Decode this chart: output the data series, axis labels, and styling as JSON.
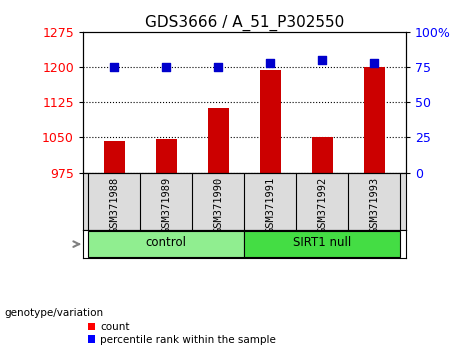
{
  "title": "GDS3666 / A_51_P302550",
  "samples": [
    "GSM371988",
    "GSM371989",
    "GSM371990",
    "GSM371991",
    "GSM371992",
    "GSM371993"
  ],
  "counts": [
    1042,
    1046,
    1113,
    1193,
    1052,
    1200
  ],
  "percentile_ranks": [
    75,
    75,
    75,
    78,
    80,
    78
  ],
  "ylim_left": [
    975,
    1275
  ],
  "yticks_left": [
    975,
    1050,
    1125,
    1200,
    1275
  ],
  "ylim_right": [
    0,
    100
  ],
  "yticks_right": [
    0,
    25,
    50,
    75,
    100
  ],
  "groups": [
    {
      "label": "control",
      "indices": [
        0,
        1,
        2
      ],
      "color": "#90EE90"
    },
    {
      "label": "SIRT1 null",
      "indices": [
        3,
        4,
        5
      ],
      "color": "#44DD44"
    }
  ],
  "bar_color": "#CC0000",
  "dot_color": "#0000CC",
  "bar_width": 0.4,
  "grid_color": "black",
  "background_color": "#DCDCDC",
  "title_fontsize": 11,
  "tick_fontsize": 9,
  "legend_label_count": "count",
  "legend_label_percentile": "percentile rank within the sample",
  "genotype_label": "genotype/variation"
}
